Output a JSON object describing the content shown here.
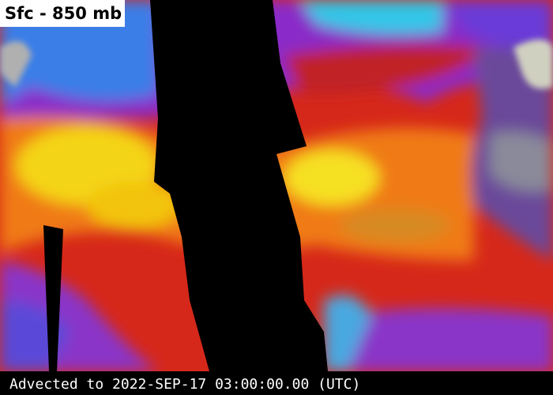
{
  "header": {
    "title": "Sfc - 850 mb"
  },
  "footer": {
    "timestamp": "Advected to 2022-SEP-17 03:00:00.00 (UTC)"
  }
}
